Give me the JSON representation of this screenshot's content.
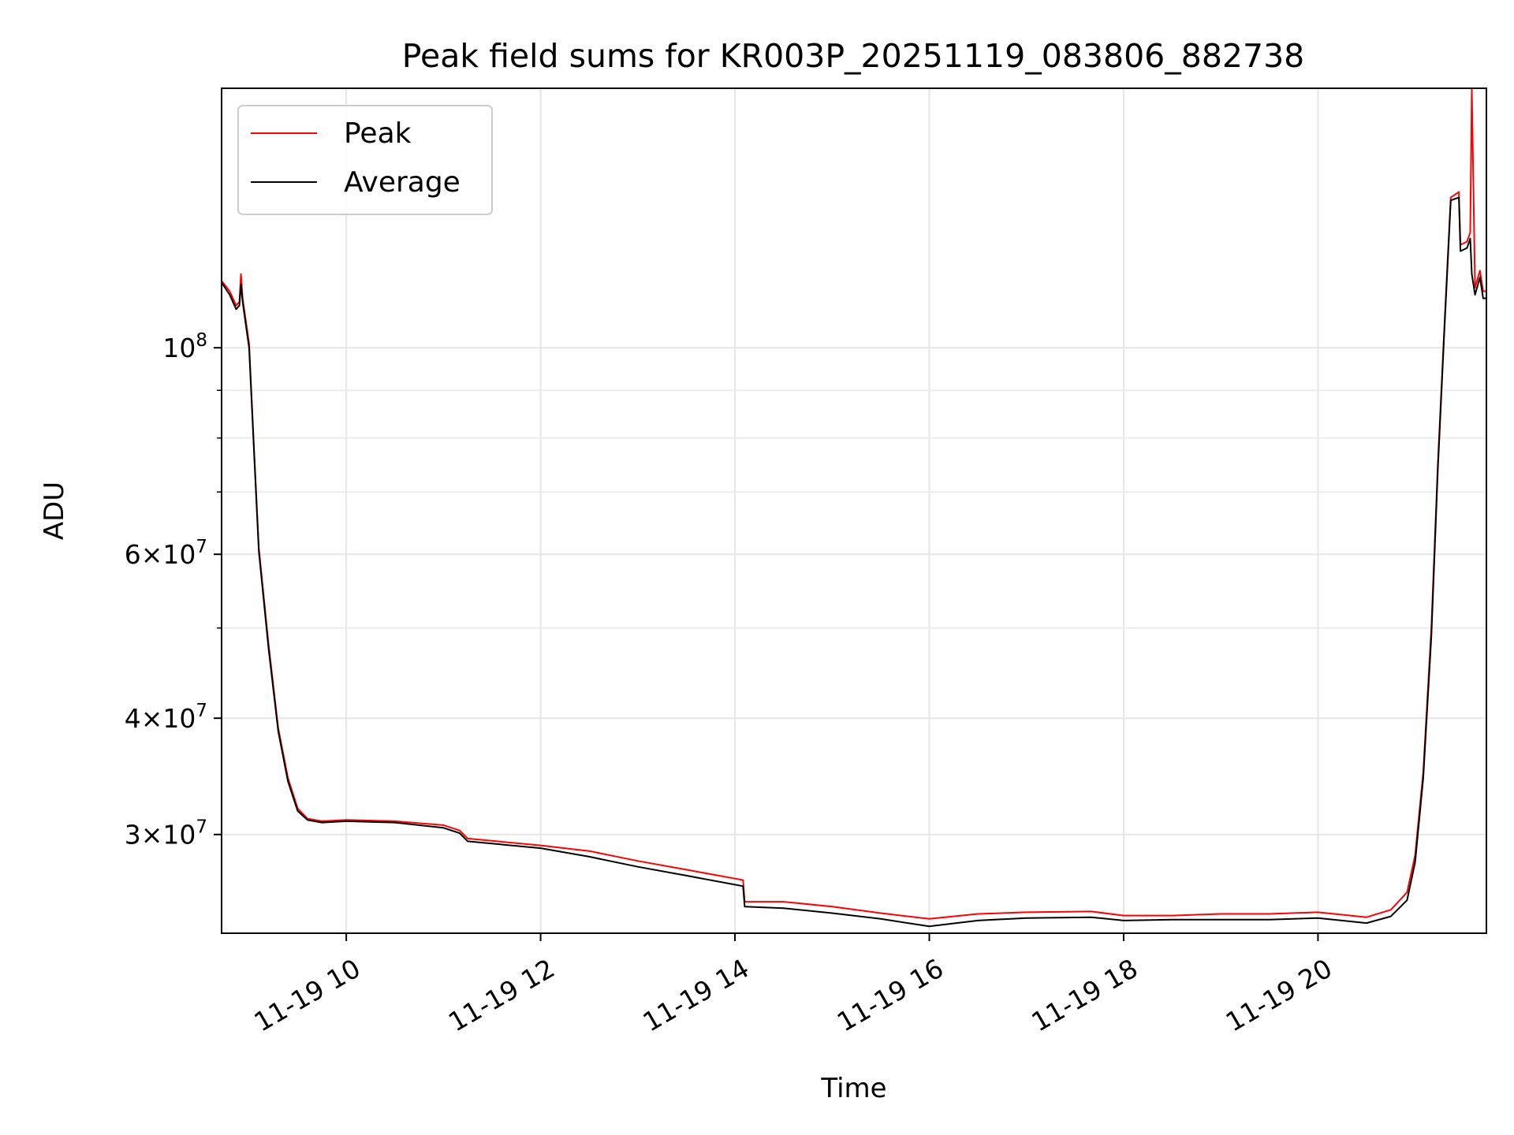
{
  "chart_data": {
    "type": "line",
    "title": "Peak field sums for KR003P_20251119_083806_882738",
    "xlabel": "Time",
    "ylabel": "ADU",
    "y_scale": "log",
    "ylim": [
      23500000,
      190000000
    ],
    "xlim": [
      "2025-11-19T08:43",
      "2025-11-19T21:44"
    ],
    "grid": true,
    "legend_position": "upper-left",
    "x_ticks": [
      {
        "t": "2025-11-19T10:00",
        "label": "11-19 10"
      },
      {
        "t": "2025-11-19T12:00",
        "label": "11-19 12"
      },
      {
        "t": "2025-11-19T14:00",
        "label": "11-19 14"
      },
      {
        "t": "2025-11-19T16:00",
        "label": "11-19 16"
      },
      {
        "t": "2025-11-19T18:00",
        "label": "11-19 18"
      },
      {
        "t": "2025-11-19T20:00",
        "label": "11-19 20"
      }
    ],
    "y_ticks": [
      {
        "value": 30000000,
        "base": "3",
        "exp": "7"
      },
      {
        "value": 40000000,
        "base": "4",
        "exp": "7"
      },
      {
        "value": 60000000,
        "base": "6",
        "exp": "7"
      },
      {
        "value": 100000000,
        "base": "",
        "exp": "8"
      }
    ],
    "y_minor_ticks": [
      50000000,
      70000000,
      80000000,
      90000000
    ],
    "series": [
      {
        "name": "Peak",
        "color": "#ff0000",
        "points": [
          [
            "2025-11-19T08:43",
            118000000
          ],
          [
            "2025-11-19T08:48",
            115000000
          ],
          [
            "2025-11-19T08:52",
            111000000
          ],
          [
            "2025-11-19T08:54",
            112000000
          ],
          [
            "2025-11-19T08:55",
            120000000
          ],
          [
            "2025-11-19T08:56",
            113000000
          ],
          [
            "2025-11-19T09:00",
            101000000
          ],
          [
            "2025-11-19T09:03",
            78000000
          ],
          [
            "2025-11-19T09:06",
            61000000
          ],
          [
            "2025-11-19T09:12",
            48000000
          ],
          [
            "2025-11-19T09:18",
            39000000
          ],
          [
            "2025-11-19T09:24",
            34500000
          ],
          [
            "2025-11-19T09:30",
            32000000
          ],
          [
            "2025-11-19T09:36",
            31200000
          ],
          [
            "2025-11-19T09:45",
            31000000
          ],
          [
            "2025-11-19T10:00",
            31100000
          ],
          [
            "2025-11-19T10:30",
            31000000
          ],
          [
            "2025-11-19T11:00",
            30700000
          ],
          [
            "2025-11-19T11:10",
            30300000
          ],
          [
            "2025-11-19T11:15",
            29700000
          ],
          [
            "2025-11-19T12:00",
            29200000
          ],
          [
            "2025-11-19T12:30",
            28800000
          ],
          [
            "2025-11-19T13:00",
            28100000
          ],
          [
            "2025-11-19T13:30",
            27500000
          ],
          [
            "2025-11-19T14:00",
            26900000
          ],
          [
            "2025-11-19T14:05",
            26800000
          ],
          [
            "2025-11-19T14:06",
            25400000
          ],
          [
            "2025-11-19T14:30",
            25400000
          ],
          [
            "2025-11-19T15:00",
            25100000
          ],
          [
            "2025-11-19T15:30",
            24700000
          ],
          [
            "2025-11-19T16:00",
            24350000
          ],
          [
            "2025-11-19T16:30",
            24650000
          ],
          [
            "2025-11-19T17:00",
            24750000
          ],
          [
            "2025-11-19T17:40",
            24800000
          ],
          [
            "2025-11-19T18:00",
            24550000
          ],
          [
            "2025-11-19T18:30",
            24550000
          ],
          [
            "2025-11-19T19:00",
            24650000
          ],
          [
            "2025-11-19T19:30",
            24650000
          ],
          [
            "2025-11-19T20:00",
            24750000
          ],
          [
            "2025-11-19T20:30",
            24450000
          ],
          [
            "2025-11-19T20:45",
            24900000
          ],
          [
            "2025-11-19T20:55",
            26000000
          ],
          [
            "2025-11-19T21:00",
            28500000
          ],
          [
            "2025-11-19T21:05",
            35000000
          ],
          [
            "2025-11-19T21:10",
            50000000
          ],
          [
            "2025-11-19T21:14",
            75000000
          ],
          [
            "2025-11-19T21:18",
            105000000
          ],
          [
            "2025-11-19T21:22",
            145000000
          ],
          [
            "2025-11-19T21:27",
            147000000
          ],
          [
            "2025-11-19T21:28",
            129000000
          ],
          [
            "2025-11-19T21:32",
            130000000
          ],
          [
            "2025-11-19T21:34",
            133000000
          ],
          [
            "2025-11-19T21:35",
            190000000
          ],
          [
            "2025-11-19T21:37",
            116000000
          ],
          [
            "2025-11-19T21:40",
            121000000
          ],
          [
            "2025-11-19T21:42",
            115000000
          ],
          [
            "2025-11-19T21:44",
            115000000
          ]
        ]
      },
      {
        "name": "Average",
        "color": "#000000",
        "points": [
          [
            "2025-11-19T08:43",
            117500000
          ],
          [
            "2025-11-19T08:48",
            114000000
          ],
          [
            "2025-11-19T08:52",
            110000000
          ],
          [
            "2025-11-19T08:54",
            111000000
          ],
          [
            "2025-11-19T08:55",
            117000000
          ],
          [
            "2025-11-19T08:56",
            112000000
          ],
          [
            "2025-11-19T09:00",
            100000000
          ],
          [
            "2025-11-19T09:03",
            77500000
          ],
          [
            "2025-11-19T09:06",
            60500000
          ],
          [
            "2025-11-19T09:12",
            47500000
          ],
          [
            "2025-11-19T09:18",
            38700000
          ],
          [
            "2025-11-19T09:24",
            34200000
          ],
          [
            "2025-11-19T09:30",
            31800000
          ],
          [
            "2025-11-19T09:36",
            31100000
          ],
          [
            "2025-11-19T09:45",
            30900000
          ],
          [
            "2025-11-19T10:00",
            31000000
          ],
          [
            "2025-11-19T10:30",
            30900000
          ],
          [
            "2025-11-19T11:00",
            30500000
          ],
          [
            "2025-11-19T11:10",
            30100000
          ],
          [
            "2025-11-19T11:15",
            29500000
          ],
          [
            "2025-11-19T12:00",
            29000000
          ],
          [
            "2025-11-19T12:30",
            28400000
          ],
          [
            "2025-11-19T13:00",
            27700000
          ],
          [
            "2025-11-19T13:30",
            27100000
          ],
          [
            "2025-11-19T14:00",
            26500000
          ],
          [
            "2025-11-19T14:05",
            26400000
          ],
          [
            "2025-11-19T14:06",
            25100000
          ],
          [
            "2025-11-19T14:30",
            25000000
          ],
          [
            "2025-11-19T15:00",
            24700000
          ],
          [
            "2025-11-19T15:30",
            24350000
          ],
          [
            "2025-11-19T16:00",
            23900000
          ],
          [
            "2025-11-19T16:30",
            24250000
          ],
          [
            "2025-11-19T17:00",
            24400000
          ],
          [
            "2025-11-19T17:40",
            24450000
          ],
          [
            "2025-11-19T18:00",
            24250000
          ],
          [
            "2025-11-19T18:30",
            24300000
          ],
          [
            "2025-11-19T19:00",
            24300000
          ],
          [
            "2025-11-19T19:30",
            24300000
          ],
          [
            "2025-11-19T20:00",
            24400000
          ],
          [
            "2025-11-19T20:30",
            24100000
          ],
          [
            "2025-11-19T20:45",
            24500000
          ],
          [
            "2025-11-19T20:55",
            25500000
          ],
          [
            "2025-11-19T21:00",
            28000000
          ],
          [
            "2025-11-19T21:05",
            34500000
          ],
          [
            "2025-11-19T21:10",
            49000000
          ],
          [
            "2025-11-19T21:14",
            74000000
          ],
          [
            "2025-11-19T21:18",
            104000000
          ],
          [
            "2025-11-19T21:22",
            144000000
          ],
          [
            "2025-11-19T21:27",
            145000000
          ],
          [
            "2025-11-19T21:28",
            127000000
          ],
          [
            "2025-11-19T21:32",
            128000000
          ],
          [
            "2025-11-19T21:34",
            131000000
          ],
          [
            "2025-11-19T21:35",
            120000000
          ],
          [
            "2025-11-19T21:37",
            114000000
          ],
          [
            "2025-11-19T21:40",
            119000000
          ],
          [
            "2025-11-19T21:42",
            113000000
          ],
          [
            "2025-11-19T21:44",
            113000000
          ]
        ]
      }
    ]
  }
}
